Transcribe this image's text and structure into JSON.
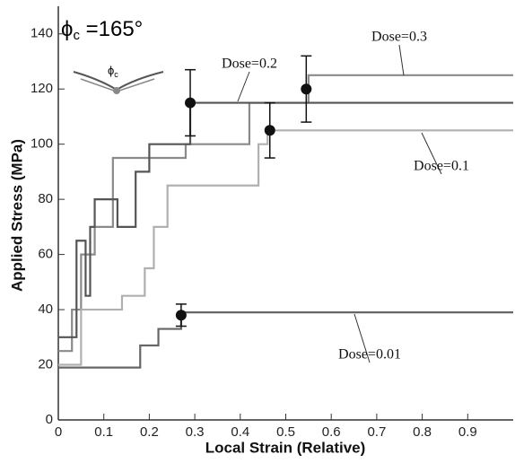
{
  "chart_data": {
    "type": "line",
    "title_symbol": "ϕ",
    "title_subscript": "c",
    "title_text": " =165°",
    "x_label": "Local Strain (Relative)",
    "y_label": "Applied Stress (MPa)",
    "xlim": [
      0,
      1
    ],
    "ylim": [
      0,
      150
    ],
    "xticks": [
      0,
      0.1,
      0.2,
      0.3,
      0.4,
      0.5,
      0.6,
      0.7,
      0.8,
      0.9
    ],
    "yticks": [
      0,
      20,
      40,
      60,
      80,
      100,
      120,
      140
    ],
    "series": [
      {
        "name": "Dose=0.3",
        "color": "#8a8a8a",
        "x": [
          0,
          0.03,
          0.03,
          0.05,
          0.05,
          0.08,
          0.08,
          0.12,
          0.12,
          0.28,
          0.28,
          0.42,
          0.42,
          0.55,
          0.55,
          1
        ],
        "values": [
          25,
          25,
          40,
          40,
          60,
          60,
          70,
          70,
          95,
          95,
          100,
          100,
          115,
          115,
          125,
          125
        ]
      },
      {
        "name": "Dose=0.2",
        "color": "#555555",
        "x": [
          0,
          0.04,
          0.04,
          0.06,
          0.06,
          0.07,
          0.07,
          0.08,
          0.08,
          0.13,
          0.13,
          0.17,
          0.17,
          0.2,
          0.2,
          0.29,
          0.29,
          1
        ],
        "values": [
          30,
          30,
          65,
          65,
          45,
          45,
          70,
          70,
          80,
          80,
          70,
          70,
          90,
          90,
          100,
          100,
          115,
          115
        ]
      },
      {
        "name": "Dose=0.1",
        "color": "#b0b0b0",
        "x": [
          0,
          0.05,
          0.05,
          0.14,
          0.14,
          0.19,
          0.19,
          0.21,
          0.21,
          0.24,
          0.24,
          0.44,
          0.44,
          0.46,
          0.46,
          1
        ],
        "values": [
          20,
          20,
          40,
          40,
          45,
          45,
          55,
          55,
          70,
          70,
          85,
          85,
          100,
          100,
          105,
          105
        ]
      },
      {
        "name": "Dose=0.01",
        "color": "#666666",
        "x": [
          0,
          0.18,
          0.18,
          0.22,
          0.22,
          0.27,
          0.27,
          1
        ],
        "values": [
          19,
          19,
          27,
          27,
          33,
          33,
          39,
          39
        ]
      }
    ],
    "markers": {
      "x": [
        0.29,
        0.465,
        0.545,
        0.27
      ],
      "values": [
        115,
        105,
        120,
        38
      ],
      "errors": [
        12,
        10,
        12,
        4
      ]
    }
  }
}
